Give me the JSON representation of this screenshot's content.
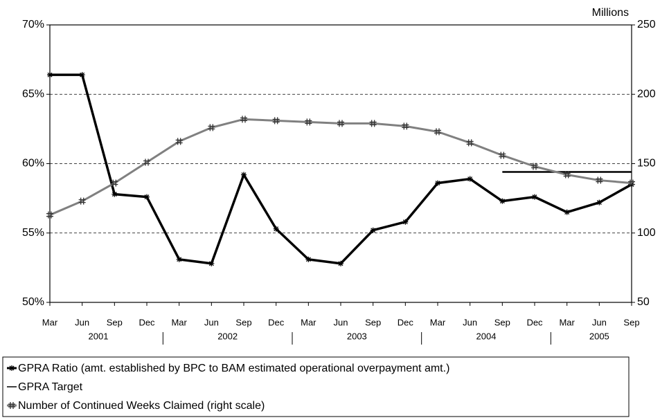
{
  "chart_data": {
    "type": "line",
    "categories": [
      "Mar",
      "Jun",
      "Sep",
      "Dec",
      "Mar",
      "Jun",
      "Sep",
      "Dec",
      "Mar",
      "Jun",
      "Sep",
      "Dec",
      "Mar",
      "Jun",
      "Sep",
      "Dec",
      "Mar",
      "Jun",
      "Sep"
    ],
    "years": [
      "2001",
      "2002",
      "2003",
      "2004",
      "2005"
    ],
    "y2_label": "Millions",
    "ylim": [
      50,
      70
    ],
    "yticks": [
      {
        "value": 50,
        "label": "50%"
      },
      {
        "value": 55,
        "label": "55%"
      },
      {
        "value": 60,
        "label": "60%"
      },
      {
        "value": 65,
        "label": "65%"
      },
      {
        "value": 70,
        "label": "70%"
      }
    ],
    "y2lim": [
      50,
      250
    ],
    "y2ticks": [
      50,
      100,
      150,
      200,
      250
    ],
    "grid": true,
    "series": [
      {
        "name": "GPRA Ratio (amt. established by BPC to BAM estimated operational overpayment amt.)",
        "color": "#000000",
        "values": [
          66.4,
          66.4,
          57.8,
          57.6,
          53.1,
          52.8,
          59.2,
          55.3,
          53.1,
          52.8,
          55.2,
          55.8,
          58.6,
          58.9,
          57.3,
          57.6,
          56.5,
          57.2,
          58.5
        ]
      },
      {
        "name": "GPRA Target",
        "color": "#000000",
        "values": [
          null,
          null,
          null,
          null,
          null,
          null,
          null,
          null,
          null,
          null,
          null,
          null,
          null,
          null,
          59.4,
          59.4,
          59.4,
          59.4,
          59.4
        ]
      },
      {
        "name": "Number of Continued Weeks Claimed (right scale)",
        "color": "#808080",
        "axis": "y2",
        "values": [
          113,
          123,
          136,
          151,
          166,
          176,
          182,
          181,
          180,
          179,
          179,
          177,
          173,
          165,
          156,
          148,
          142,
          138,
          136
        ]
      }
    ]
  }
}
